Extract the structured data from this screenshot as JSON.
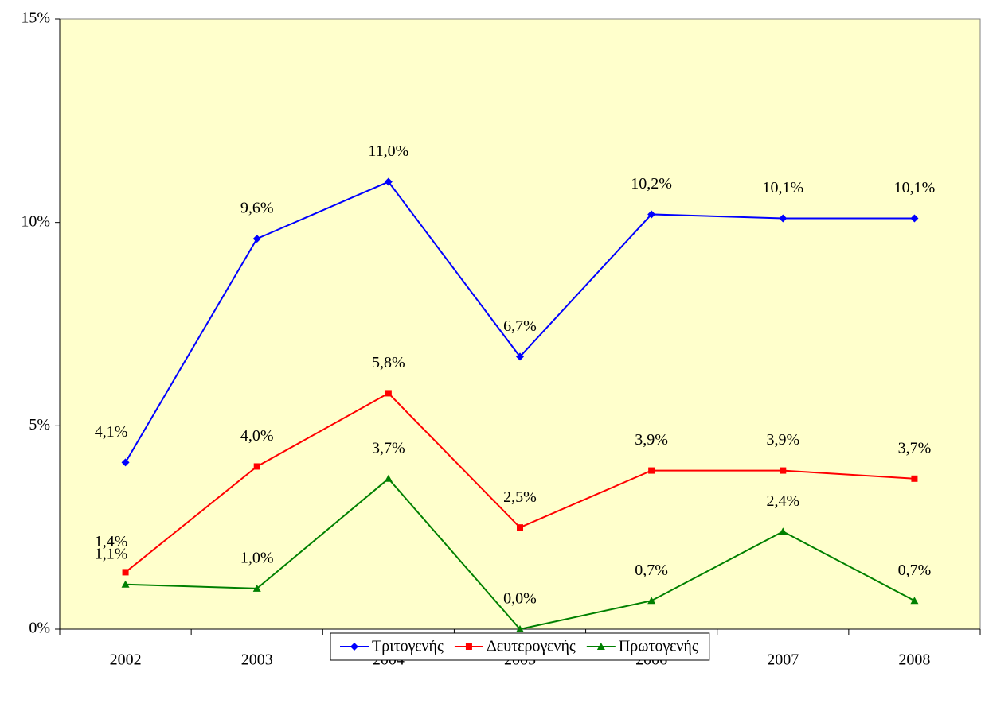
{
  "chart_data": {
    "type": "line",
    "categories": [
      "2002",
      "2003",
      "2004",
      "2005",
      "2006",
      "2007",
      "2008"
    ],
    "series": [
      {
        "name": "Τριτογενής",
        "color": "#0000ff",
        "marker": "diamond",
        "values": [
          4.1,
          9.6,
          11.0,
          6.7,
          10.2,
          10.1,
          10.1
        ],
        "value_labels": [
          "4,1%",
          "9,6%",
          "11,0%",
          "6,7%",
          "10,2%",
          "10,1%",
          "10,1%"
        ]
      },
      {
        "name": "Δευτερογενής",
        "color": "#ff0000",
        "marker": "square",
        "values": [
          1.4,
          4.0,
          5.8,
          2.5,
          3.9,
          3.9,
          3.7
        ],
        "value_labels": [
          "1,4%",
          "4,0%",
          "5,8%",
          "2,5%",
          "3,9%",
          "3,9%",
          "3,7%"
        ]
      },
      {
        "name": "Πρωτογενής",
        "color": "#008000",
        "marker": "triangle",
        "values": [
          1.1,
          1.0,
          3.7,
          0.0,
          0.7,
          2.4,
          0.7
        ],
        "value_labels": [
          "1,1%",
          "1,0%",
          "3,7%",
          "0,0%",
          "0,7%",
          "2,4%",
          "0,7%"
        ]
      }
    ],
    "ylim": [
      0,
      15
    ],
    "yticks": [
      {
        "value": 0,
        "label": "0%"
      },
      {
        "value": 5,
        "label": "5%"
      },
      {
        "value": 10,
        "label": "10%"
      },
      {
        "value": 15,
        "label": "15%"
      }
    ],
    "plot_background": "#ffffcc",
    "legend": "bottom"
  }
}
